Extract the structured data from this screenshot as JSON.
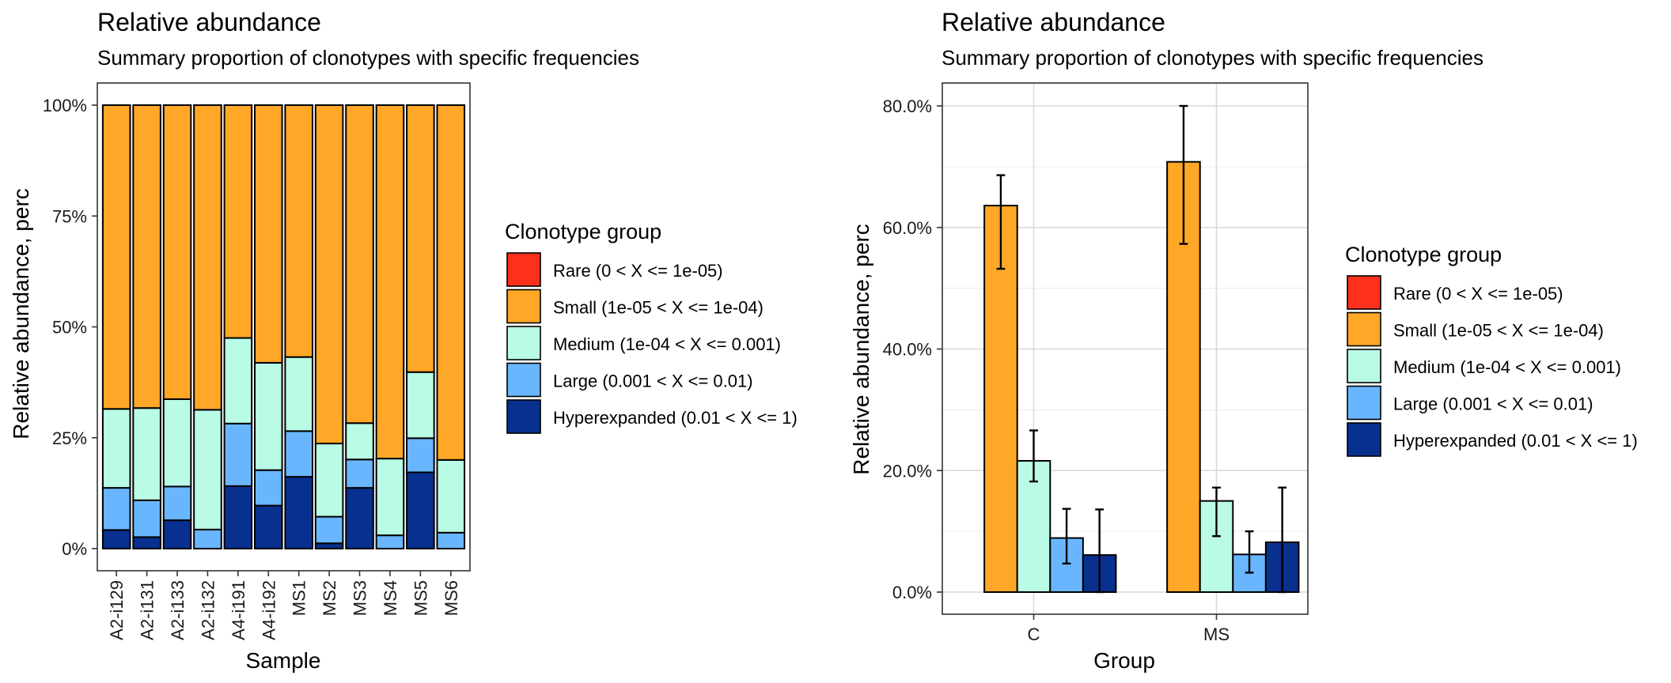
{
  "chart_data": [
    {
      "type": "bar",
      "stacked": true,
      "title": "Relative abundance",
      "subtitle": "Summary proportion of clonotypes with specific frequencies",
      "xlabel": "Sample",
      "ylabel": "Relative abundance, perc",
      "ylim": [
        0,
        1
      ],
      "yticks": [
        0,
        0.25,
        0.5,
        0.75,
        1
      ],
      "ytick_labels": [
        "0%",
        "25%",
        "50%",
        "75%",
        "100%"
      ],
      "grid": false,
      "legend_placement": "right",
      "legend_title": "Clonotype group",
      "categories": [
        "A2-i129",
        "A2-i131",
        "A2-i133",
        "A2-i132",
        "A4-i191",
        "A4-i192",
        "MS1",
        "MS2",
        "MS3",
        "MS4",
        "MS5",
        "MS6"
      ],
      "series": [
        {
          "name": "Rare (0 < X <= 1e-05)",
          "color": "#FF2F1E",
          "values": [
            0,
            0,
            0,
            0,
            0,
            0,
            0,
            0,
            0,
            0,
            0,
            0
          ]
        },
        {
          "name": "Small (1e-05 < X <= 1e-04)",
          "color": "#FFA726",
          "values": [
            0.685,
            0.683,
            0.663,
            0.687,
            0.525,
            0.581,
            0.568,
            0.763,
            0.717,
            0.797,
            0.602,
            0.8
          ]
        },
        {
          "name": "Medium (1e-04 < X <= 0.001)",
          "color": "#B9FBE5",
          "values": [
            0.178,
            0.208,
            0.197,
            0.27,
            0.193,
            0.242,
            0.167,
            0.165,
            0.082,
            0.173,
            0.149,
            0.164
          ]
        },
        {
          "name": "Large (0.001 < X <= 0.01)",
          "color": "#69B6FF",
          "values": [
            0.095,
            0.083,
            0.076,
            0.043,
            0.141,
            0.08,
            0.103,
            0.06,
            0.064,
            0.03,
            0.077,
            0.036
          ]
        },
        {
          "name": "Hyperexpanded (0.01 < X <= 1)",
          "color": "#08308F",
          "values": [
            0.042,
            0.026,
            0.064,
            0,
            0.141,
            0.097,
            0.162,
            0.012,
            0.137,
            0,
            0.172,
            0
          ]
        }
      ]
    },
    {
      "type": "bar",
      "title": "Relative abundance",
      "subtitle": "Summary proportion of clonotypes with specific frequencies",
      "xlabel": "Group",
      "ylabel": "Relative abundance, perc",
      "ylim": [
        -0.04,
        0.83
      ],
      "yticks": [
        0,
        0.2,
        0.4,
        0.6,
        0.8
      ],
      "ytick_labels": [
        "0.0%",
        "20.0%",
        "40.0%",
        "60.0%",
        "80.0%"
      ],
      "grid": true,
      "error_bars": true,
      "legend_placement": "right",
      "legend_title": "Clonotype group",
      "categories": [
        "C",
        "MS"
      ],
      "series": [
        {
          "name": "Rare (0 < X <= 1e-05)",
          "color": "#FF2F1E",
          "values": [
            0,
            0
          ],
          "err_low": [
            0,
            0
          ],
          "err_high": [
            0,
            0
          ]
        },
        {
          "name": "Small (1e-05 < X <= 1e-04)",
          "color": "#FFA726",
          "values": [
            0.636,
            0.708
          ],
          "err_low": [
            0.532,
            0.573
          ],
          "err_high": [
            0.686,
            0.8
          ]
        },
        {
          "name": "Medium (1e-04 < X <= 0.001)",
          "color": "#B9FBE5",
          "values": [
            0.216,
            0.15
          ],
          "err_low": [
            0.182,
            0.092
          ],
          "err_high": [
            0.266,
            0.172
          ]
        },
        {
          "name": "Large (0.001 < X <= 0.01)",
          "color": "#69B6FF",
          "values": [
            0.089,
            0.062
          ],
          "err_low": [
            0.047,
            0.032
          ],
          "err_high": [
            0.137,
            0.1
          ]
        },
        {
          "name": "Hyperexpanded (0.01 < X <= 1)",
          "color": "#08308F",
          "values": [
            0.061,
            0.082
          ],
          "err_low": [
            0,
            0
          ],
          "err_high": [
            0.136,
            0.172
          ]
        }
      ]
    }
  ]
}
